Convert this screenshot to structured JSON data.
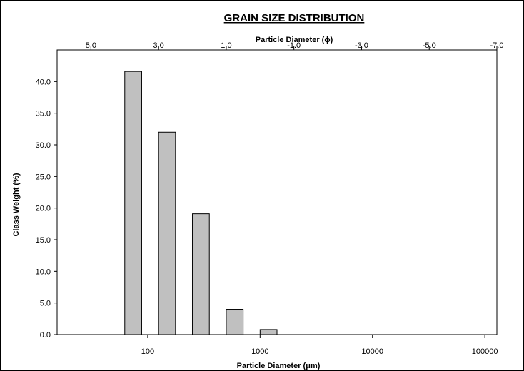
{
  "chart_data": {
    "type": "bar",
    "title": "GRAIN SIZE DISTRIBUTION",
    "xlabel": "Particle Diameter (μm)",
    "x2label": "Particle Diameter (ϕ)",
    "ylabel": "Class Weight (%)",
    "x_scale": "log",
    "xlim_um": [
      15.625,
      128000
    ],
    "x2lim_phi": [
      6,
      -7
    ],
    "ylim": [
      0,
      45
    ],
    "grid": false,
    "x_ticks": [
      {
        "value": 100,
        "label": "100"
      },
      {
        "value": 1000,
        "label": "1000"
      },
      {
        "value": 10000,
        "label": "10000"
      },
      {
        "value": 100000,
        "label": "100000"
      }
    ],
    "x2_ticks": [
      {
        "value": 5,
        "label": "5.0"
      },
      {
        "value": 3,
        "label": "3.0"
      },
      {
        "value": 1,
        "label": "1.0"
      },
      {
        "value": -1,
        "label": "-1.0"
      },
      {
        "value": -3,
        "label": "-3.0"
      },
      {
        "value": -5,
        "label": "-5.0"
      },
      {
        "value": -7,
        "label": "-7.0"
      }
    ],
    "y_ticks": [
      "0.0",
      "5.0",
      "10.0",
      "15.0",
      "20.0",
      "25.0",
      "30.0",
      "35.0",
      "40.0"
    ],
    "bars": [
      {
        "phi_coarse": 4.0,
        "phi_fine": 3.5,
        "value": 41.6
      },
      {
        "phi_coarse": 3.0,
        "phi_fine": 2.5,
        "value": 32.0
      },
      {
        "phi_coarse": 2.0,
        "phi_fine": 1.5,
        "value": 19.1
      },
      {
        "phi_coarse": 1.0,
        "phi_fine": 0.5,
        "value": 4.0
      },
      {
        "phi_coarse": 0.0,
        "phi_fine": -0.5,
        "value": 0.8
      }
    ]
  }
}
